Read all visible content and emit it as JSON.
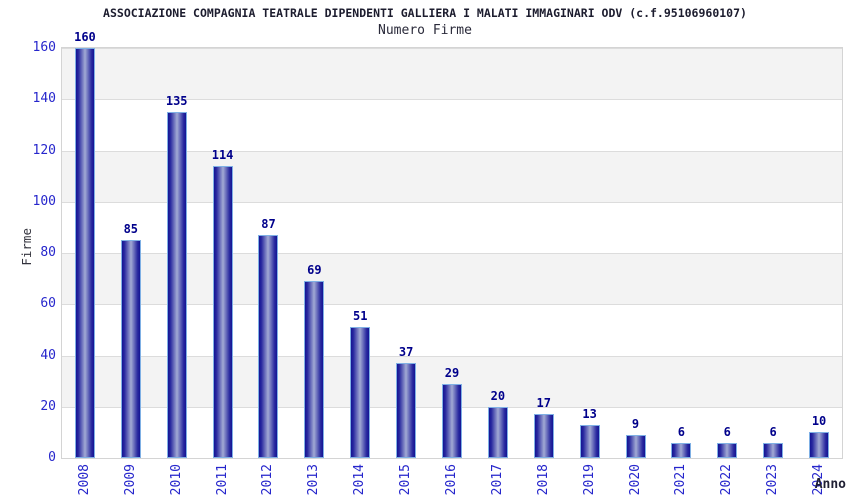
{
  "chart_data": {
    "type": "bar",
    "title": "ASSOCIAZIONE COMPAGNIA TEATRALE DIPENDENTI GALLIERA I MALATI IMMAGINARI ODV (c.f.95106960107)",
    "subtitle": "Numero Firme",
    "xlabel": "Anno",
    "ylabel": "Firme",
    "categories": [
      "2008",
      "2009",
      "2010",
      "2011",
      "2012",
      "2013",
      "2014",
      "2015",
      "2016",
      "2017",
      "2018",
      "2019",
      "2020",
      "2021",
      "2022",
      "2023",
      "2024"
    ],
    "values": [
      160,
      85,
      135,
      114,
      87,
      69,
      51,
      37,
      29,
      20,
      17,
      13,
      9,
      6,
      6,
      6,
      10
    ],
    "ylim": [
      0,
      160
    ],
    "ytick_step": 20,
    "grid": true,
    "legend": "none",
    "colors": {
      "bar_edge": "#131394",
      "bar_mid": "#2a2aa0",
      "bar_center": "#a2aad4",
      "bar_border": "#7fb0e5",
      "value_label": "#00008b",
      "tick_label": "#2626cc",
      "band_gray": "#f3f3f3",
      "band_white": "#ffffff",
      "gridline": "#dcdcdc"
    }
  }
}
